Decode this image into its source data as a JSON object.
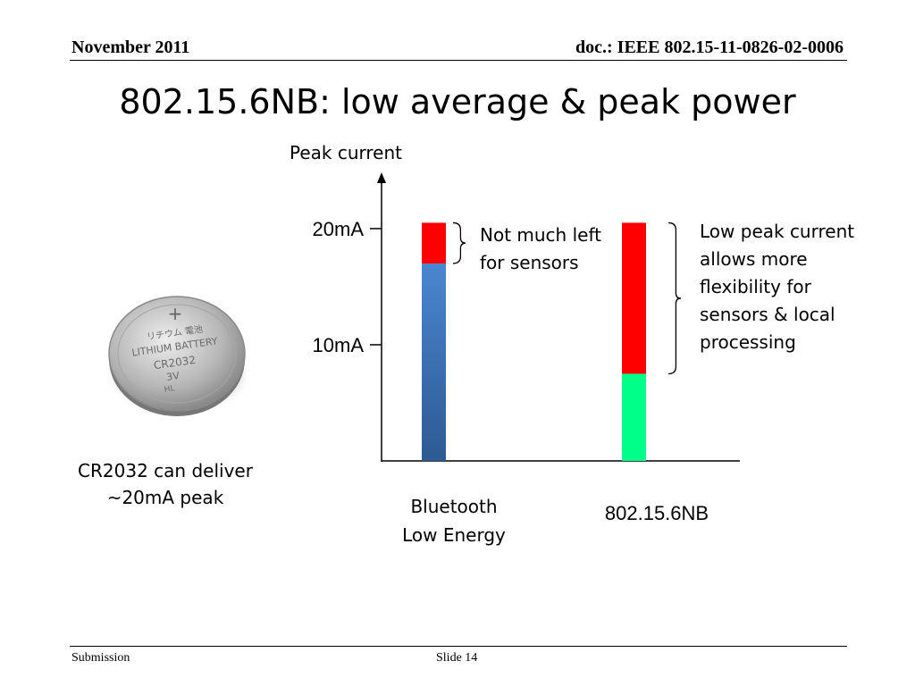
{
  "header": {
    "date": "November 2011",
    "doc": "doc.: IEEE 802.15-11-0826-02-0006"
  },
  "title": "802.15.6NB: low average & peak power",
  "battery": {
    "icon": "coin-cell-battery",
    "imprint": [
      "リチウム 電池",
      "LITHIUM BATTERY",
      "CR2032",
      "3V",
      "HL"
    ],
    "caption_lines": [
      "CR2032 can deliver",
      "~20mA peak"
    ]
  },
  "chart_data": {
    "type": "bar",
    "ylabel": "Peak current",
    "ytick_values": [
      10,
      20
    ],
    "ytick_labels": [
      "10mA",
      "20mA"
    ],
    "ylim": [
      0,
      24.3
    ],
    "categories": [
      [
        "Bluetooth",
        "Low Energy"
      ],
      [
        "802.15.6NB"
      ]
    ],
    "bars": [
      {
        "segments": [
          {
            "from": 0,
            "to": 17,
            "color": "#3a72b8"
          },
          {
            "from": 17,
            "to": 20.5,
            "color": "#ff0000"
          }
        ]
      },
      {
        "segments": [
          {
            "from": 0,
            "to": 7.5,
            "color": "#00ff88"
          },
          {
            "from": 7.5,
            "to": 20.5,
            "color": "#ff0000"
          }
        ]
      }
    ],
    "annotations": [
      {
        "bar": 0,
        "text_lines": [
          "Not much left",
          "for sensors"
        ]
      },
      {
        "bar": 1,
        "text_lines": [
          "Low peak current",
          "allows more",
          "flexibility for",
          "sensors & local",
          "processing"
        ]
      }
    ]
  },
  "footer": {
    "left": "Submission",
    "center": "Slide 14"
  }
}
